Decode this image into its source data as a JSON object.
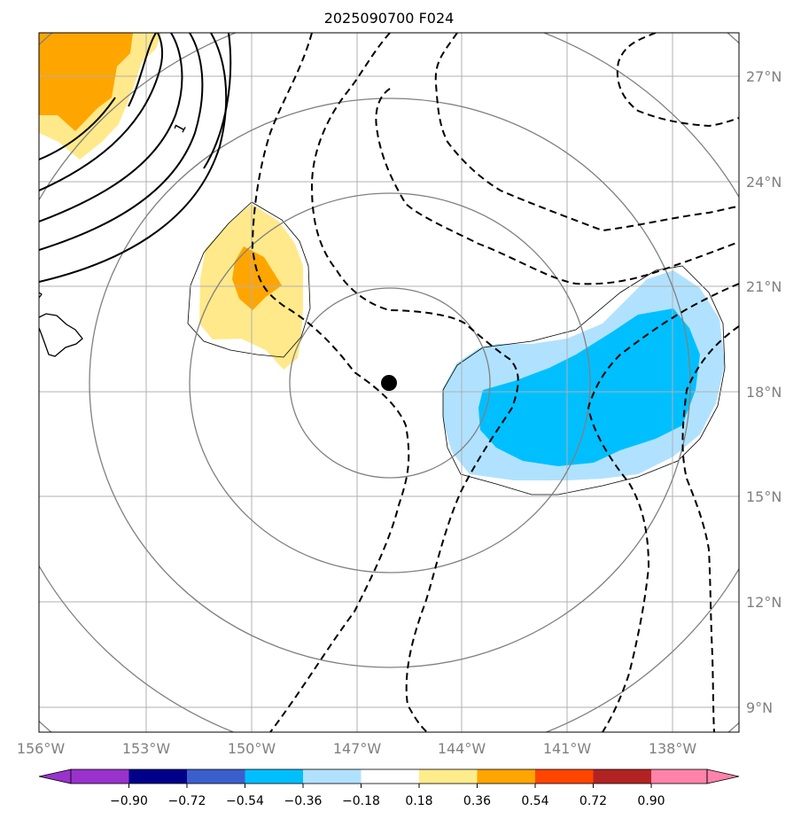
{
  "title": "2025090700 F024",
  "map": {
    "lon_labels": [
      "156°W",
      "153°W",
      "150°W",
      "147°W",
      "144°W",
      "141°W",
      "138°W"
    ],
    "lat_labels": [
      "27°N",
      "24°N",
      "21°N",
      "18°N",
      "15°N",
      "12°N",
      "9°N"
    ],
    "lon_extent": [
      -156,
      -136
    ],
    "lat_extent": [
      8.3,
      28.2
    ],
    "storm_center": {
      "lon": -146.0,
      "lat": 18.3
    },
    "contour_label": "1"
  },
  "colorbar": {
    "tick_labels": [
      "−0.90",
      "−0.72",
      "−0.54",
      "−0.36",
      "−0.18",
      "0.18",
      "0.36",
      "0.54",
      "0.72",
      "0.90"
    ],
    "colors": [
      "#9932cc",
      "#00008b",
      "#3a5fcd",
      "#00bfff",
      "#b0e2ff",
      "#ffffff",
      "#ffec8b",
      "#ffa500",
      "#ff4500",
      "#b22222",
      "#ff82ab"
    ]
  },
  "colors": {
    "pos_light": "#ffe98a",
    "pos_dark": "#ffa500",
    "neg_light": "#b0e2ff",
    "neg_dark": "#00bfff",
    "range_rings": "#808080",
    "grid": "#b0b0b0"
  }
}
